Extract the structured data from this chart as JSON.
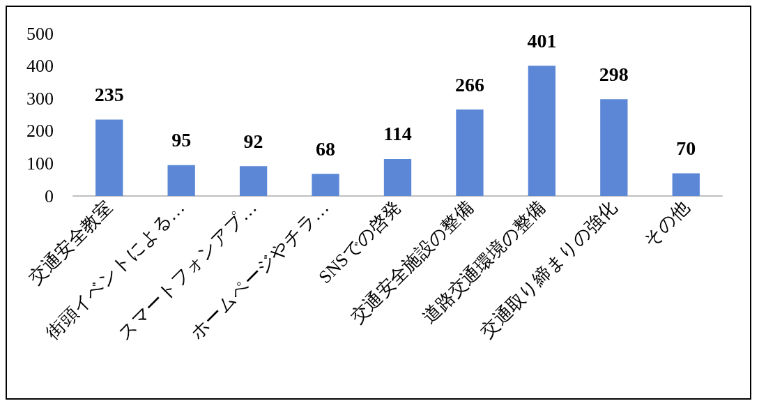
{
  "chart_data": {
    "type": "bar",
    "categories": [
      "交通安全教室",
      "街頭イベントによる…",
      "スマートフォンアプ…",
      "ホームページやチラ…",
      "SNSでの啓発",
      "交通安全施設の整備",
      "道路交通環境の整備",
      "交通取り締まりの強化",
      "その他"
    ],
    "values": [
      235,
      95,
      92,
      68,
      114,
      266,
      401,
      298,
      70
    ],
    "color": "#5b87d6",
    "ylim": [
      0,
      500
    ],
    "yticks": [
      0,
      100,
      200,
      300,
      400,
      500
    ],
    "data_labels": true
  }
}
